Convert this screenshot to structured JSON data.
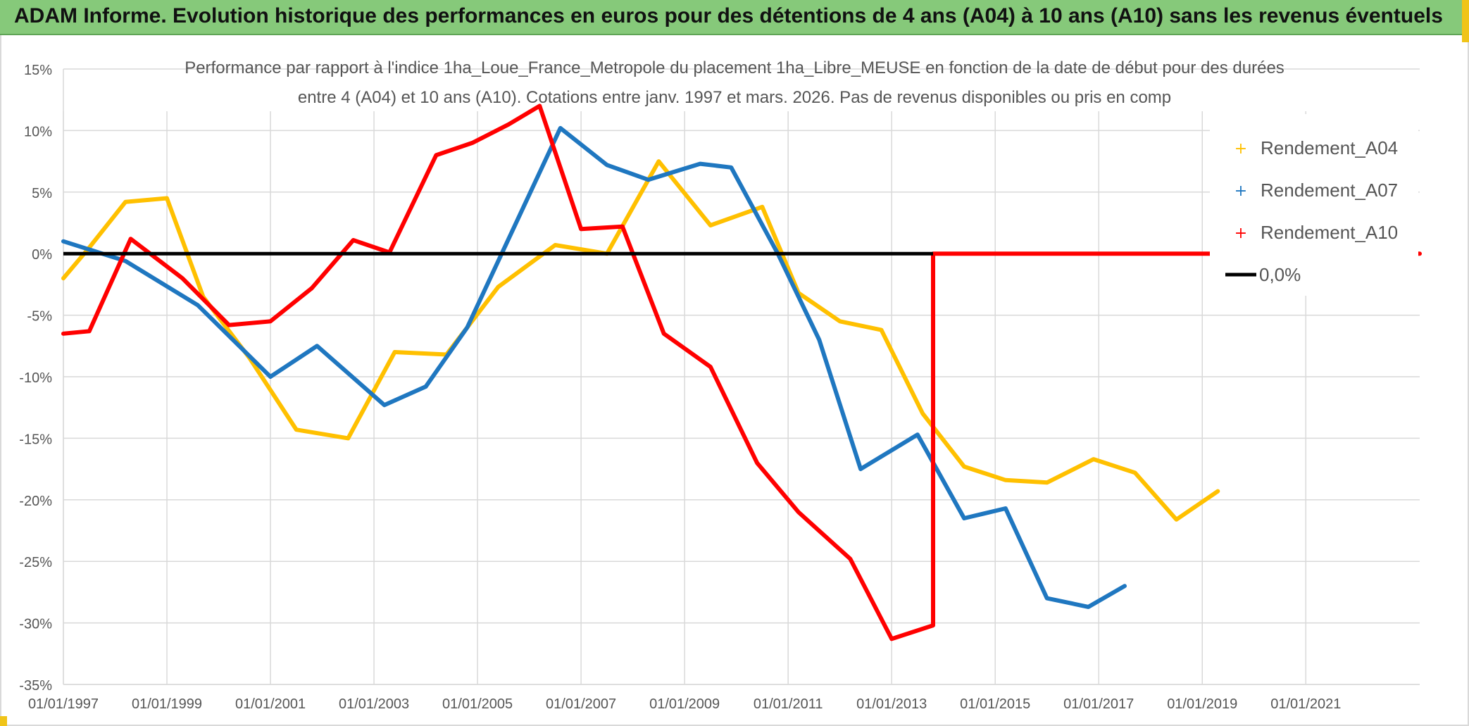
{
  "banner": {
    "title": "ADAM Informe. Evolution historique des performances en euros pour des détentions de 4 ans (A04) à 10 ans (A10) sans les revenus éventuels"
  },
  "colors": {
    "banner_bg": "#86c97a",
    "grid": "#d9d9d9",
    "zero_line": "#000000"
  },
  "chart_data": {
    "type": "line",
    "title_line1": "Performance par rapport à l'indice 1ha_Loue_France_Metropole  du placement 1ha_Libre_MEUSE en fonction de la date de début pour des durées",
    "title_line2": "entre 4 (A04) et 10 ans (A10). Cotations entre janv. 1997 et mars. 2026. Pas de revenus disponibles ou pris en comp",
    "xlabel": "",
    "ylabel": "",
    "x_ticks": [
      "01/01/1997",
      "01/01/1999",
      "01/01/2001",
      "01/01/2003",
      "01/01/2005",
      "01/01/2007",
      "01/01/2009",
      "01/01/2011",
      "01/01/2013",
      "01/01/2015",
      "01/01/2017",
      "01/01/2019",
      "01/01/2021"
    ],
    "xlim": [
      1997.0,
      2023.2
    ],
    "y_ticks": [
      15,
      10,
      5,
      0,
      -5,
      -10,
      -15,
      -20,
      -25,
      -30,
      -35
    ],
    "y_tick_labels": [
      "15%",
      "10%",
      "5%",
      "0%",
      "-5%",
      "-10%",
      "-15%",
      "-20%",
      "-25%",
      "-30%",
      "-35%"
    ],
    "ylim": [
      -35,
      15
    ],
    "grid": true,
    "legend_position": "top-right",
    "series": [
      {
        "name": "Rendement_A04",
        "color": "#ffc000",
        "points": [
          [
            1997.0,
            -2.0
          ],
          [
            1997.5,
            0.5
          ],
          [
            1998.2,
            4.2
          ],
          [
            1999.0,
            4.5
          ],
          [
            1999.7,
            -3.5
          ],
          [
            2000.6,
            -8.5
          ],
          [
            2001.5,
            -14.3
          ],
          [
            2002.5,
            -15.0
          ],
          [
            2003.4,
            -8.0
          ],
          [
            2004.4,
            -8.2
          ],
          [
            2005.4,
            -2.7
          ],
          [
            2006.5,
            0.7
          ],
          [
            2007.5,
            0.0
          ],
          [
            2008.5,
            7.5
          ],
          [
            2009.5,
            2.3
          ],
          [
            2010.5,
            3.8
          ],
          [
            2011.2,
            -3.2
          ],
          [
            2012.0,
            -5.5
          ],
          [
            2012.8,
            -6.2
          ],
          [
            2013.6,
            -13.0
          ],
          [
            2014.4,
            -17.3
          ],
          [
            2015.2,
            -18.4
          ],
          [
            2016.0,
            -18.6
          ],
          [
            2016.9,
            -16.7
          ],
          [
            2017.7,
            -17.8
          ],
          [
            2018.5,
            -21.6
          ],
          [
            2019.3,
            -19.3
          ]
        ]
      },
      {
        "name": "Rendement_A07",
        "color": "#1f77c0",
        "points": [
          [
            1997.0,
            1.0
          ],
          [
            1998.2,
            -0.6
          ],
          [
            1999.6,
            -4.2
          ],
          [
            2001.0,
            -10.0
          ],
          [
            2001.9,
            -7.5
          ],
          [
            2003.2,
            -12.3
          ],
          [
            2004.0,
            -10.8
          ],
          [
            2004.8,
            -6.0
          ],
          [
            2005.8,
            3.0
          ],
          [
            2006.6,
            10.2
          ],
          [
            2007.5,
            7.2
          ],
          [
            2008.3,
            6.0
          ],
          [
            2009.3,
            7.3
          ],
          [
            2009.9,
            7.0
          ],
          [
            2010.8,
            0.0
          ],
          [
            2011.6,
            -7.0
          ],
          [
            2012.4,
            -17.5
          ],
          [
            2013.5,
            -14.7
          ],
          [
            2014.4,
            -21.5
          ],
          [
            2015.2,
            -20.7
          ],
          [
            2016.0,
            -28.0
          ],
          [
            2016.8,
            -28.7
          ],
          [
            2017.5,
            -27.0
          ]
        ]
      },
      {
        "name": "Rendement_A10",
        "color": "#ff0000",
        "points": [
          [
            1997.0,
            -6.5
          ],
          [
            1997.5,
            -6.3
          ],
          [
            1998.3,
            1.2
          ],
          [
            1999.3,
            -2.0
          ],
          [
            2000.2,
            -5.8
          ],
          [
            2001.0,
            -5.5
          ],
          [
            2001.8,
            -2.8
          ],
          [
            2002.6,
            1.1
          ],
          [
            2003.3,
            0.1
          ],
          [
            2004.2,
            8.0
          ],
          [
            2004.9,
            9.0
          ],
          [
            2005.6,
            10.5
          ],
          [
            2006.2,
            12.0
          ],
          [
            2007.0,
            2.0
          ],
          [
            2007.8,
            2.2
          ],
          [
            2008.6,
            -6.5
          ],
          [
            2009.5,
            -9.2
          ],
          [
            2010.4,
            -17.0
          ],
          [
            2011.2,
            -21.0
          ],
          [
            2012.2,
            -24.8
          ],
          [
            2013.0,
            -31.3
          ],
          [
            2013.8,
            -30.2
          ],
          [
            2013.8,
            0.0
          ],
          [
            2023.2,
            0.0
          ]
        ]
      }
    ],
    "reference_line": {
      "name": "0,0%",
      "y": 0,
      "color": "#000000"
    }
  }
}
